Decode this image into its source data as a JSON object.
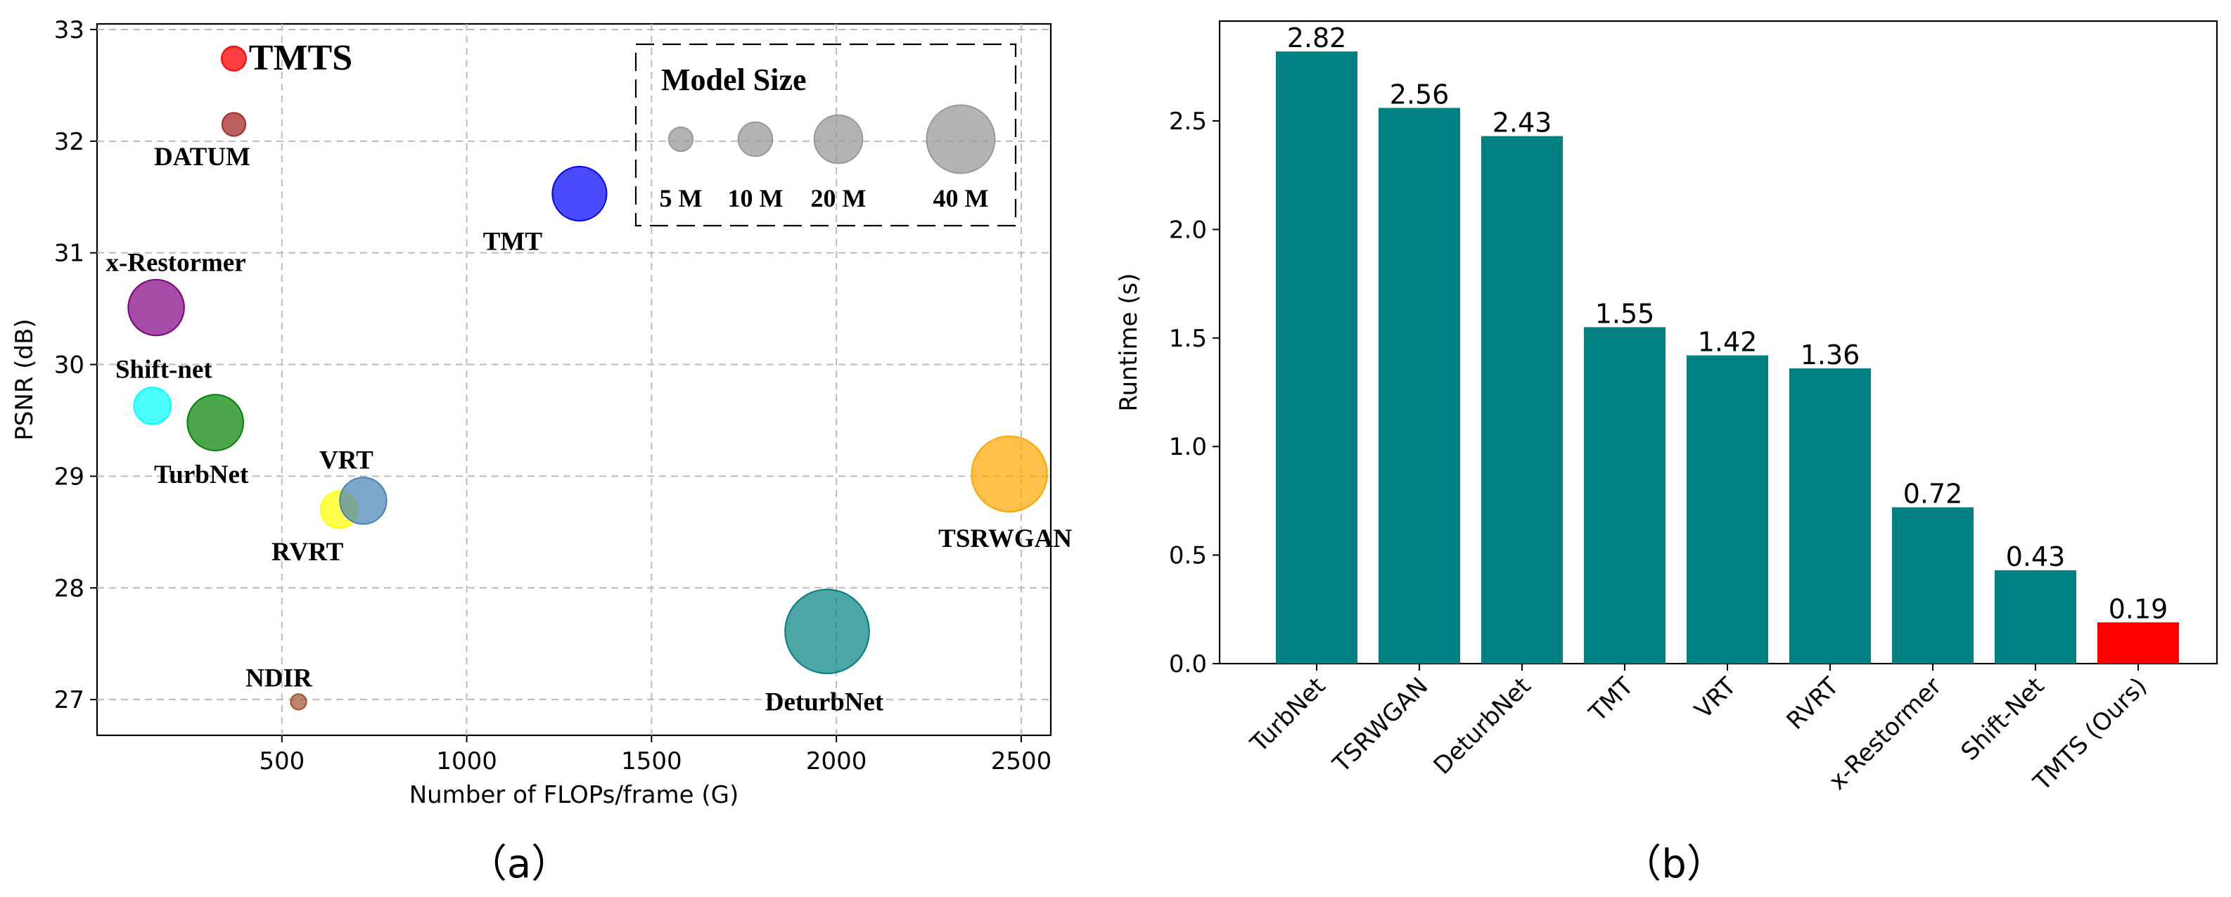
{
  "chart_data": [
    {
      "type": "scatter",
      "panel_caption": "（a）",
      "xlabel": "Number of FLOPs/frame (G)",
      "ylabel": "PSNR (dB)",
      "xlim": [
        0,
        2580
      ],
      "ylim": [
        26.68,
        33.05
      ],
      "xticks": [
        500,
        1000,
        1500,
        2000,
        2500
      ],
      "yticks": [
        27,
        28,
        29,
        30,
        31,
        32,
        33
      ],
      "grid": true,
      "points": [
        {
          "name": "TMTS",
          "x": 370,
          "y": 32.74,
          "size_m": 2.2,
          "color": "#ff0000",
          "alpha": 0.75,
          "label": "TMTS"
        },
        {
          "name": "DATUM",
          "x": 370,
          "y": 32.15,
          "size_m": 2.0,
          "color": "#a52a2a",
          "alpha": 0.75,
          "label": "DATUM"
        },
        {
          "name": "TMT",
          "x": 1305,
          "y": 31.53,
          "size_m": 10.8,
          "color": "#0000ff",
          "alpha": 0.7,
          "label": "TMT"
        },
        {
          "name": "x-Restormer",
          "x": 160,
          "y": 30.51,
          "size_m": 11.5,
          "color": "#800080",
          "alpha": 0.7,
          "label": "x-Restormer"
        },
        {
          "name": "Shift-net",
          "x": 150,
          "y": 29.63,
          "size_m": 5.0,
          "color": "#00ffff",
          "alpha": 0.7,
          "label": "Shift-net"
        },
        {
          "name": "TurbNet",
          "x": 320,
          "y": 29.48,
          "size_m": 11.5,
          "color": "#008000",
          "alpha": 0.7,
          "label": "TurbNet"
        },
        {
          "name": "RVRT",
          "x": 655,
          "y": 28.7,
          "size_m": 5.0,
          "color": "#ffff00",
          "alpha": 0.7,
          "label": "RVRT"
        },
        {
          "name": "VRT",
          "x": 720,
          "y": 28.78,
          "size_m": 8.0,
          "color": "#4682b4",
          "alpha": 0.7,
          "label": "VRT"
        },
        {
          "name": "TSRWGAN",
          "x": 2468,
          "y": 29.02,
          "size_m": 21.0,
          "color": "#ffa500",
          "alpha": 0.7,
          "label": "TSRWGAN"
        },
        {
          "name": "DeturbNet",
          "x": 1975,
          "y": 27.61,
          "size_m": 26.0,
          "color": "#008080",
          "alpha": 0.7,
          "label": "DeturbNet"
        },
        {
          "name": "NDIR",
          "x": 545,
          "y": 26.98,
          "size_m": 0.9,
          "color": "#a0522d",
          "alpha": 0.7,
          "label": "NDIR"
        }
      ],
      "legend": {
        "title": "Model Size",
        "placement": "top-right",
        "items": [
          {
            "label": "5 M",
            "size_m": 5
          },
          {
            "label": "10 M",
            "size_m": 10
          },
          {
            "label": "20 M",
            "size_m": 20
          },
          {
            "label": "40 M",
            "size_m": 40
          }
        ],
        "color": "#999999"
      }
    },
    {
      "type": "bar",
      "panel_caption": "（b）",
      "xlabel": "",
      "ylabel": "Runtime (s)",
      "ylim": [
        0,
        2.96
      ],
      "yticks": [
        0.0,
        0.5,
        1.0,
        1.5,
        2.0,
        2.5
      ],
      "ytick_labels": [
        "0.0",
        "0.5",
        "1.0",
        "1.5",
        "2.0",
        "2.5"
      ],
      "grid": false,
      "categories": [
        "TurbNet",
        "TSRWGAN",
        "DeturbNet",
        "TMT",
        "VRT",
        "RVRT",
        "x-Restormer",
        "Shift-Net",
        "TMTS (Ours)"
      ],
      "values": [
        2.82,
        2.56,
        2.43,
        1.55,
        1.42,
        1.36,
        0.72,
        0.43,
        0.19
      ],
      "value_labels": [
        "2.82",
        "2.56",
        "2.43",
        "1.55",
        "1.42",
        "1.36",
        "0.72",
        "0.43",
        "0.19"
      ],
      "colors": [
        "#008080",
        "#008080",
        "#008080",
        "#008080",
        "#008080",
        "#008080",
        "#008080",
        "#008080",
        "#ff0000"
      ]
    }
  ]
}
